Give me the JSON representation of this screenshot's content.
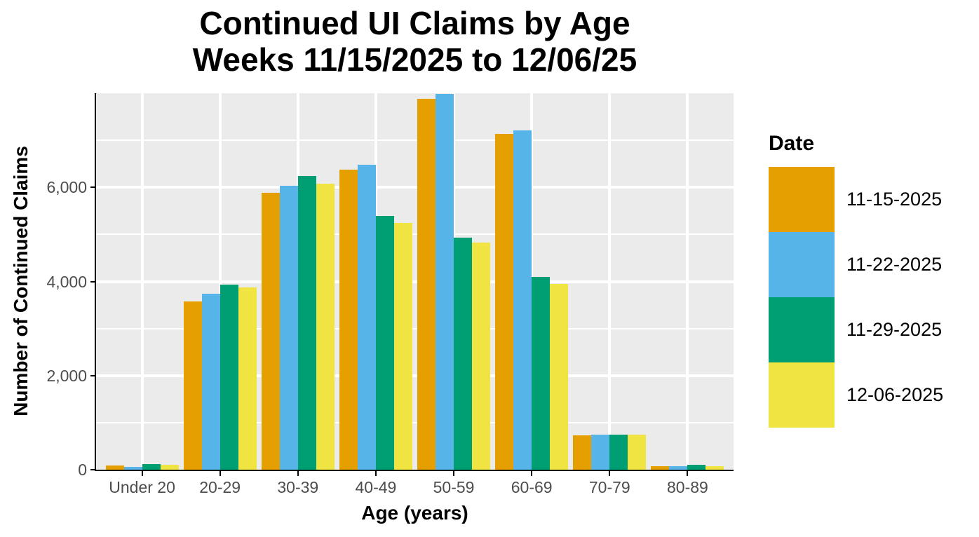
{
  "chart_data": {
    "type": "bar",
    "title": "Continued UI Claims by Age\nWeeks 11/15/2025 to 12/06/25",
    "title_lines": [
      "Continued UI Claims by Age",
      "Weeks 11/15/2025 to 12/06/25"
    ],
    "xlabel": "Age (years)",
    "ylabel": "Number of Continued Claims",
    "legend_title": "Date",
    "legend_position": "right",
    "grid": true,
    "categories": [
      "Under 20",
      "20-29",
      "30-39",
      "40-49",
      "50-59",
      "60-69",
      "70-79",
      "80-89"
    ],
    "series": [
      {
        "name": "11-15-2025",
        "color": "#E69F00",
        "values": [
          85,
          3570,
          5890,
          6370,
          7880,
          7130,
          730,
          70
        ]
      },
      {
        "name": "11-22-2025",
        "color": "#56B4E9",
        "values": [
          65,
          3740,
          6030,
          6480,
          7980,
          7210,
          745,
          75
        ]
      },
      {
        "name": "11-29-2025",
        "color": "#009E73",
        "values": [
          115,
          3930,
          6250,
          5400,
          4930,
          4100,
          745,
          100
        ]
      },
      {
        "name": "12-06-2025",
        "color": "#F0E442",
        "values": [
          100,
          3870,
          6080,
          5240,
          4830,
          3950,
          745,
          80
        ]
      }
    ],
    "ylim": [
      0,
      8000
    ],
    "yticks": [
      0,
      2000,
      4000,
      6000
    ],
    "ytick_labels": [
      "0",
      "2,000",
      "4,000",
      "6,000"
    ],
    "minor_gridlines": [
      1000,
      3000,
      5000,
      7000
    ],
    "major_gridlines": [
      2000,
      4000,
      6000
    ],
    "colors": {
      "panel_background": "#EBEBEB",
      "gridline": "#FFFFFF",
      "axis_line": "#000000",
      "tick_label": "#4D4D4D",
      "text": "#000000"
    }
  }
}
